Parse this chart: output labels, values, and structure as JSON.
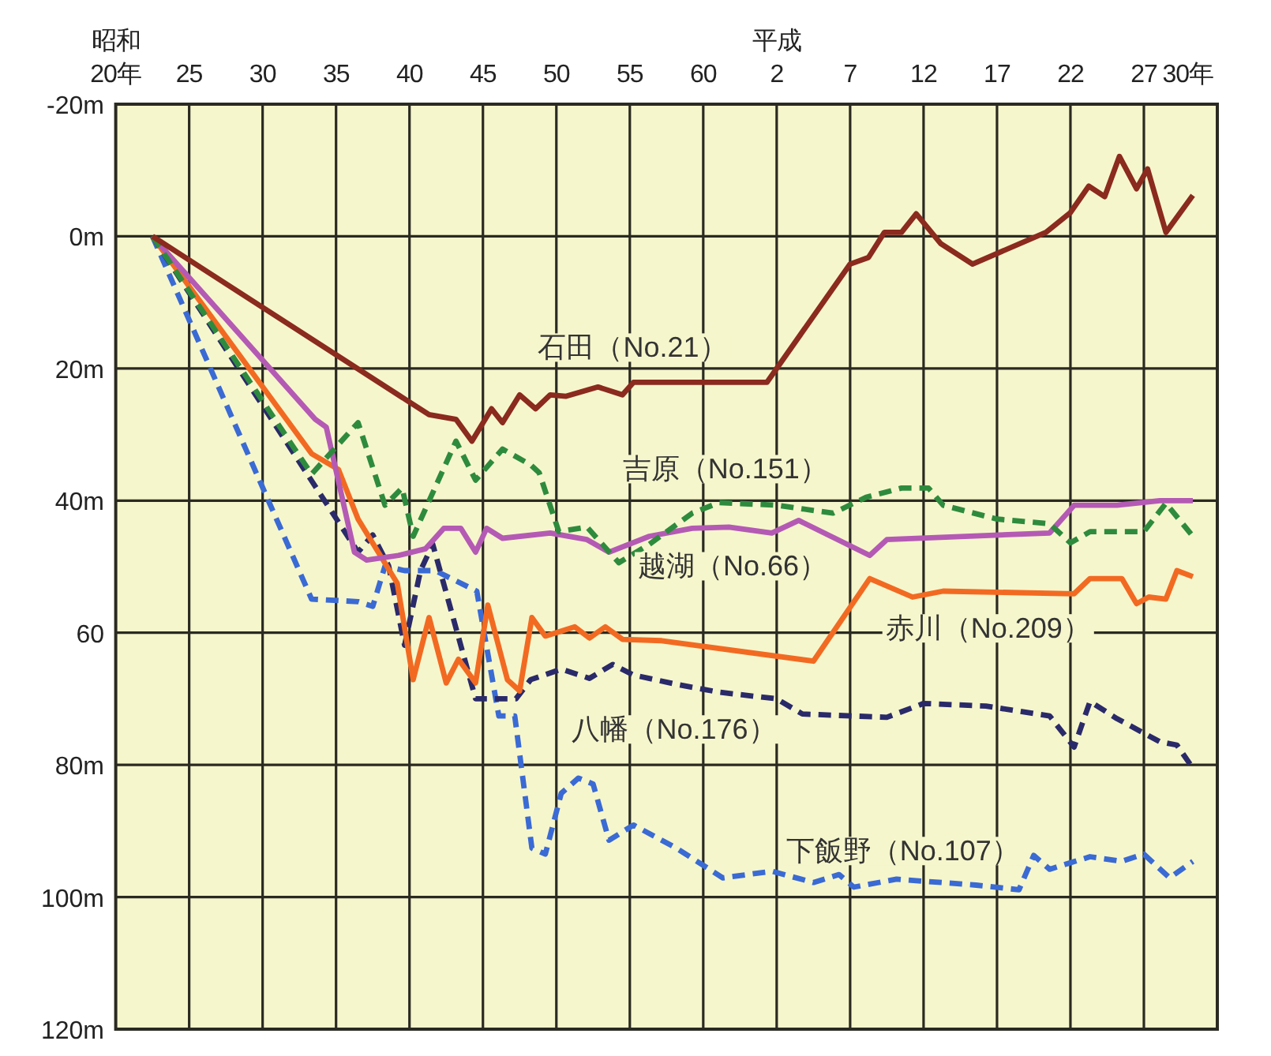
{
  "chart_data": {
    "type": "line",
    "xlim": [
      "1945",
      "2020"
    ],
    "ylim": [
      120,
      -20
    ],
    "xticks": [
      {
        "value": "1945",
        "label": "昭和\n20年"
      },
      {
        "value": "1950",
        "label": "25"
      },
      {
        "value": "1955",
        "label": "30"
      },
      {
        "value": "1960",
        "label": "35"
      },
      {
        "value": "1965",
        "label": "40"
      },
      {
        "value": "1970",
        "label": "45"
      },
      {
        "value": "1975",
        "label": "50"
      },
      {
        "value": "1980",
        "label": "55"
      },
      {
        "value": "1985",
        "label": "60"
      },
      {
        "value": "1990",
        "label": "平成\n2"
      },
      {
        "value": "1995",
        "label": "7"
      },
      {
        "value": "2000",
        "label": "12"
      },
      {
        "value": "2005",
        "label": "17"
      },
      {
        "value": "2010",
        "label": "22"
      },
      {
        "value": "2015",
        "label": "27"
      },
      {
        "value": "2018",
        "label": "30年"
      }
    ],
    "yticks": [
      {
        "value": -20,
        "label": "-20m"
      },
      {
        "value": 0,
        "label": "0m"
      },
      {
        "value": 20,
        "label": "20m"
      },
      {
        "value": 40,
        "label": "40m"
      },
      {
        "value": 60,
        "label": "60"
      },
      {
        "value": 80,
        "label": "80m"
      },
      {
        "value": 100,
        "label": "100m"
      },
      {
        "value": 120,
        "label": "120m"
      }
    ],
    "grid": true,
    "legend": false,
    "marker": "none",
    "series": [
      {
        "name": "石田（No.21）",
        "color": "#8b2a1e",
        "line_style": "solid",
        "x": [
          "1947-07",
          "1966-05",
          "1968-03",
          "1969-04",
          "1970-08",
          "1971-05",
          "1972-07",
          "1973-08",
          "1974-08",
          "1975-09",
          "1977-11",
          "1979-07",
          "1980-04",
          "1989-05",
          "1995-01",
          "1996-04",
          "1997-05",
          "1998-07",
          "1999-07",
          "2001-03",
          "2003-05",
          "2008-05",
          "2010-01",
          "2011-04",
          "2012-05",
          "2013-05",
          "2014-07",
          "2015-04",
          "2016-07",
          "2018-05"
        ],
        "values": [
          0,
          27.0,
          27.7,
          31.0,
          26.1,
          28.2,
          24.0,
          26.1,
          24.0,
          24.2,
          22.8,
          24.0,
          22.1,
          22.1,
          4.2,
          3.2,
          -0.6,
          -0.6,
          -3.4,
          1.1,
          4.2,
          -0.6,
          -3.6,
          -7.6,
          -6.0,
          -12.1,
          -7.2,
          -10.2,
          -0.6,
          -6.2
        ]
      },
      {
        "name": "吉原（No.151）",
        "color": "#2e8b3e",
        "line_style": "dashed",
        "x": [
          "1947-07",
          "1958-05",
          "1961-07",
          "1963-05",
          "1964-07",
          "1965-04",
          "1968-03",
          "1969-07",
          "1971-05",
          "1973-04",
          "1973-11",
          "1975-03",
          "1977-02",
          "1979-04",
          "1981-05",
          "1984-04",
          "1986-02",
          "1990-01",
          "1993-11",
          "1996-02",
          "1998-07",
          "2000-05",
          "2001-05",
          "2005-01",
          "2008-08",
          "2010-01",
          "2011-05",
          "2015-01",
          "2016-07",
          "2018-05"
        ],
        "values": [
          0,
          36.0,
          28.2,
          40.7,
          38.1,
          45.4,
          31.0,
          36.9,
          32.2,
          34.6,
          35.8,
          44.7,
          44.0,
          49.4,
          46.6,
          41.9,
          40.3,
          40.7,
          41.9,
          39.5,
          38.1,
          38.1,
          40.7,
          42.8,
          43.5,
          46.4,
          44.7,
          44.7,
          40.4,
          45.4
        ]
      },
      {
        "name": "越湖（No.66）",
        "color": "#b45ab4",
        "line_style": "solid",
        "x": [
          "1947-07",
          "1958-08",
          "1959-05",
          "1961-04",
          "1962-02",
          "1964-04",
          "1966-02",
          "1967-05",
          "1968-07",
          "1969-07",
          "1970-04",
          "1971-05",
          "1974-08",
          "1977-02",
          "1978-08",
          "1981-05",
          "1984-04",
          "1986-10",
          "1989-09",
          "1991-07",
          "1996-05",
          "1997-07",
          "2008-08",
          "2010-04",
          "2013-03",
          "2016-02",
          "2018-05"
        ],
        "values": [
          0,
          27.7,
          28.9,
          47.8,
          49.0,
          48.3,
          47.3,
          44.2,
          44.2,
          47.8,
          44.2,
          45.7,
          44.9,
          45.9,
          47.8,
          45.4,
          44.2,
          44.0,
          44.9,
          43.0,
          48.3,
          45.9,
          44.9,
          40.7,
          40.7,
          40.0,
          40.0
        ]
      },
      {
        "name": "赤川（No.209）",
        "color": "#f26a22",
        "line_style": "solid",
        "x": [
          "1947-07",
          "1958-05",
          "1960-03",
          "1961-07",
          "1964-03",
          "1965-04",
          "1966-05",
          "1967-07",
          "1968-05",
          "1969-07",
          "1970-05",
          "1971-09",
          "1972-07",
          "1973-05",
          "1974-04",
          "1976-04",
          "1977-04",
          "1978-05",
          "1979-07",
          "1982-03",
          "1992-07",
          "1996-05",
          "1999-04",
          "2001-05",
          "2010-04",
          "2011-05",
          "2013-07",
          "2014-07",
          "2015-05",
          "2016-07",
          "2017-04",
          "2018-05"
        ],
        "values": [
          0,
          32.9,
          35.3,
          42.8,
          52.5,
          67.1,
          57.7,
          67.6,
          64.0,
          67.6,
          55.8,
          67.1,
          68.8,
          57.7,
          60.5,
          59.1,
          60.8,
          59.1,
          61.0,
          61.2,
          64.3,
          51.8,
          54.6,
          53.7,
          54.1,
          51.8,
          51.8,
          55.6,
          54.6,
          54.9,
          50.6,
          51.5
        ]
      },
      {
        "name": "八幡（No.176）",
        "color": "#2a2a6a",
        "line_style": "dashed",
        "x": [
          "1947-07",
          "1961-07",
          "1962-07",
          "1963-08",
          "1964-09",
          "1965-10",
          "1966-08",
          "1969-07",
          "1972-04",
          "1973-04",
          "1975-05",
          "1977-04",
          "1978-11",
          "1980-04",
          "1983-03",
          "1986-02",
          "1990-01",
          "1991-10",
          "1997-07",
          "2000-01",
          "2004-04",
          "2008-08",
          "2010-04",
          "2011-05",
          "2013-03",
          "2016-02",
          "2017-04",
          "2018-05"
        ],
        "values": [
          0,
          47.8,
          45.2,
          49.9,
          61.9,
          50.6,
          46.6,
          70.0,
          70.0,
          67.1,
          65.5,
          66.9,
          64.8,
          66.4,
          67.8,
          69.0,
          70.0,
          72.3,
          72.8,
          70.7,
          71.1,
          72.6,
          77.3,
          70.4,
          73.0,
          76.5,
          77.0,
          80.5
        ]
      },
      {
        "name": "下飯野（No.107）",
        "color": "#3a6ad4",
        "line_style": "dashed",
        "x": [
          "1947-07",
          "1958-05",
          "1961-07",
          "1962-07",
          "1963-05",
          "1964-09",
          "1966-10",
          "1969-08",
          "1971-02",
          "1972-03",
          "1973-05",
          "1974-04",
          "1975-05",
          "1976-07",
          "1977-07",
          "1978-08",
          "1980-04",
          "1983-03",
          "1986-05",
          "1989-09",
          "1992-07",
          "1994-04",
          "1995-04",
          "1998-03",
          "2003-08",
          "2006-07",
          "2007-07",
          "2008-08",
          "2011-05",
          "2013-07",
          "2015-01",
          "2016-10",
          "2018-05"
        ],
        "values": [
          0,
          54.9,
          55.3,
          56.0,
          49.9,
          50.6,
          50.6,
          53.7,
          72.6,
          72.6,
          92.6,
          93.5,
          84.3,
          82.0,
          82.9,
          91.4,
          89.1,
          92.6,
          97.1,
          96.1,
          97.8,
          96.6,
          98.5,
          97.3,
          98.2,
          98.9,
          93.7,
          95.8,
          93.9,
          94.6,
          93.5,
          97.1,
          94.6
        ]
      }
    ]
  }
}
